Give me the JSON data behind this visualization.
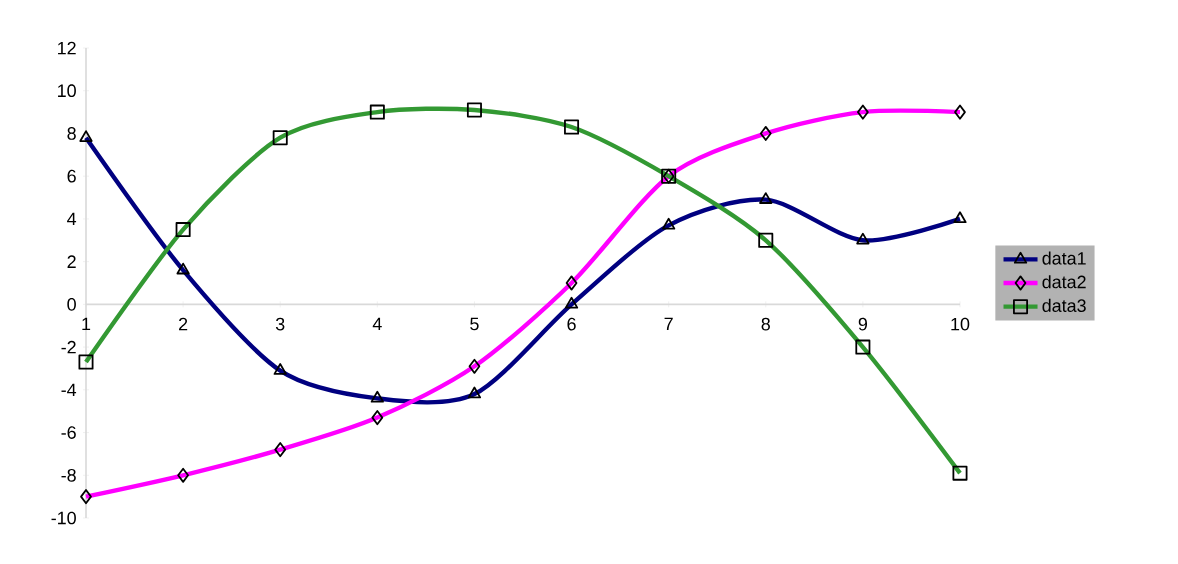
{
  "chart_data": {
    "type": "line",
    "x": [
      1,
      2,
      3,
      4,
      5,
      6,
      7,
      8,
      9,
      10
    ],
    "series": [
      {
        "name": "data1",
        "color": "#000080",
        "marker": "triangle",
        "values": [
          7.8,
          1.6,
          -3.1,
          -4.4,
          -4.2,
          0,
          3.7,
          4.9,
          3.0,
          4.0
        ]
      },
      {
        "name": "data2",
        "color": "#ff00ff",
        "marker": "diamond",
        "values": [
          -9,
          -8,
          -6.8,
          -5.3,
          -2.9,
          1.0,
          6.0,
          8.0,
          9.0,
          9.0
        ]
      },
      {
        "name": "data3",
        "color": "#339933",
        "marker": "square",
        "values": [
          -2.7,
          3.5,
          7.8,
          9.0,
          9.1,
          8.3,
          6.0,
          3.0,
          -2.0,
          -7.9
        ]
      }
    ],
    "xlim": [
      1,
      10
    ],
    "xticks": [
      1,
      2,
      3,
      4,
      5,
      6,
      7,
      8,
      9,
      10
    ],
    "ylim": [
      -10,
      12
    ],
    "yticks": [
      -10,
      -8,
      -6,
      -4,
      -2,
      0,
      2,
      4,
      6,
      8,
      10,
      12
    ],
    "grid": false,
    "legend": "right",
    "line_style": "solid"
  }
}
